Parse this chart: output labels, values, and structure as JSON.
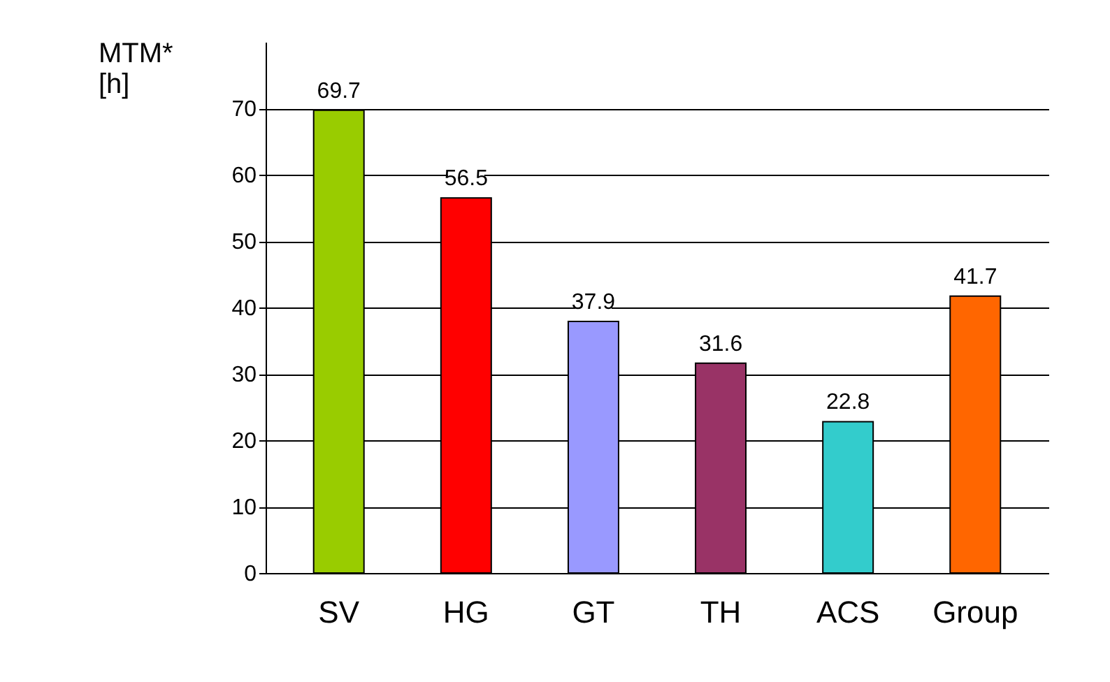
{
  "chart_data": {
    "type": "bar",
    "ylabel": "MTM*\n[h]",
    "categories": [
      "SV",
      "HG",
      "GT",
      "TH",
      "ACS",
      "Group"
    ],
    "values": [
      69.7,
      56.5,
      37.9,
      31.6,
      22.8,
      41.7
    ],
    "colors": [
      "#99cc00",
      "#ff0000",
      "#9999ff",
      "#993366",
      "#33cccc",
      "#ff6600"
    ],
    "ylim": [
      0,
      80
    ],
    "yticks": [
      0,
      10,
      20,
      30,
      40,
      50,
      60,
      70
    ],
    "grid": "y",
    "data_labels": true
  }
}
